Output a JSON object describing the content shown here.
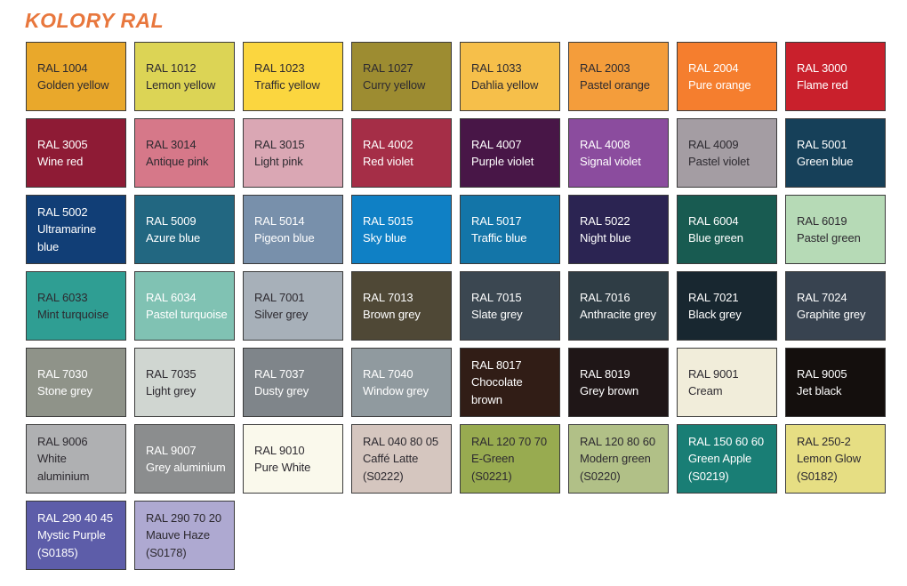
{
  "page": {
    "title": "KOLORY RAL",
    "title_color": "#E8773D",
    "background": "#FFFFFF"
  },
  "chart_data": {
    "type": "table",
    "title": "KOLORY RAL",
    "columns": [
      "code",
      "name",
      "suffix",
      "hex",
      "text_color"
    ],
    "layout": {
      "columns_per_row": 8,
      "swatch_border_color": "#3B3B3B"
    },
    "rows": [
      {
        "code": "RAL 1004",
        "name": "Golden yellow",
        "suffix": "",
        "hex": "#E9A82B",
        "text_color": "#2D2A30"
      },
      {
        "code": "RAL 1012",
        "name": "Lemon yellow",
        "suffix": "",
        "hex": "#DCD455",
        "text_color": "#2D2A30"
      },
      {
        "code": "RAL 1023",
        "name": "Traffic yellow",
        "suffix": "",
        "hex": "#FBD63F",
        "text_color": "#2D2A30"
      },
      {
        "code": "RAL 1027",
        "name": "Curry yellow",
        "suffix": "",
        "hex": "#9D8C31",
        "text_color": "#2D2A30"
      },
      {
        "code": "RAL 1033",
        "name": "Dahlia yellow",
        "suffix": "",
        "hex": "#F6BF4A",
        "text_color": "#2D2A30"
      },
      {
        "code": "RAL 2003",
        "name": "Pastel orange",
        "suffix": "",
        "hex": "#F49D3B",
        "text_color": "#2D2A30"
      },
      {
        "code": "RAL 2004",
        "name": "Pure orange",
        "suffix": "",
        "hex": "#F57E2E",
        "text_color": "#FFFFFF"
      },
      {
        "code": "RAL 3000",
        "name": "Flame red",
        "suffix": "",
        "hex": "#C9202C",
        "text_color": "#FFFFFF"
      },
      {
        "code": "RAL 3005",
        "name": "Wine red",
        "suffix": "",
        "hex": "#8E1B35",
        "text_color": "#FFFFFF"
      },
      {
        "code": "RAL 3014",
        "name": "Antique pink",
        "suffix": "",
        "hex": "#D67889",
        "text_color": "#2D2A30"
      },
      {
        "code": "RAL 3015",
        "name": "Light pink",
        "suffix": "",
        "hex": "#DAA7B4",
        "text_color": "#2D2A30"
      },
      {
        "code": "RAL 4002",
        "name": "Red violet",
        "suffix": "",
        "hex": "#A52E47",
        "text_color": "#FFFFFF"
      },
      {
        "code": "RAL 4007",
        "name": "Purple violet",
        "suffix": "",
        "hex": "#481647",
        "text_color": "#FFFFFF"
      },
      {
        "code": "RAL 4008",
        "name": "Signal violet",
        "suffix": "",
        "hex": "#8B4C9E",
        "text_color": "#FFFFFF"
      },
      {
        "code": "RAL 4009",
        "name": "Pastel violet",
        "suffix": "",
        "hex": "#A49DA3",
        "text_color": "#2D2A30"
      },
      {
        "code": "RAL 5001",
        "name": "Green blue",
        "suffix": "",
        "hex": "#164059",
        "text_color": "#FFFFFF"
      },
      {
        "code": "RAL 5002",
        "name": "Ultramarine\nblue",
        "suffix": "",
        "hex": "#113E76",
        "text_color": "#FFFFFF"
      },
      {
        "code": "RAL 5009",
        "name": "Azure blue",
        "suffix": "",
        "hex": "#226781",
        "text_color": "#FFFFFF"
      },
      {
        "code": "RAL 5014",
        "name": "Pigeon blue",
        "suffix": "",
        "hex": "#7890AB",
        "text_color": "#FFFFFF"
      },
      {
        "code": "RAL 5015",
        "name": "Sky blue",
        "suffix": "",
        "hex": "#0F80C5",
        "text_color": "#FFFFFF"
      },
      {
        "code": "RAL 5017",
        "name": "Traffic blue",
        "suffix": "",
        "hex": "#1375A8",
        "text_color": "#FFFFFF"
      },
      {
        "code": "RAL 5022",
        "name": "Night blue",
        "suffix": "",
        "hex": "#2B2452",
        "text_color": "#FFFFFF"
      },
      {
        "code": "RAL 6004",
        "name": "Blue green",
        "suffix": "",
        "hex": "#185B51",
        "text_color": "#FFFFFF"
      },
      {
        "code": "RAL 6019",
        "name": "Pastel green",
        "suffix": "",
        "hex": "#B6DAB6",
        "text_color": "#2D2A30"
      },
      {
        "code": "RAL 6033",
        "name": "Mint turquoise",
        "suffix": "",
        "hex": "#2F9E93",
        "text_color": "#2D2A30"
      },
      {
        "code": "RAL 6034",
        "name": "Pastel turquoise",
        "suffix": "",
        "hex": "#80C2B3",
        "text_color": "#FFFFFF"
      },
      {
        "code": "RAL 7001",
        "name": "Silver grey",
        "suffix": "",
        "hex": "#A7B0B9",
        "text_color": "#2D2A30"
      },
      {
        "code": "RAL 7013",
        "name": "Brown grey",
        "suffix": "",
        "hex": "#4F4836",
        "text_color": "#FFFFFF"
      },
      {
        "code": "RAL 7015",
        "name": "Slate grey",
        "suffix": "",
        "hex": "#3B4751",
        "text_color": "#FFFFFF"
      },
      {
        "code": "RAL 7016",
        "name": "Anthracite grey",
        "suffix": "",
        "hex": "#2F3D45",
        "text_color": "#FFFFFF"
      },
      {
        "code": "RAL 7021",
        "name": "Black grey",
        "suffix": "",
        "hex": "#182730",
        "text_color": "#FFFFFF"
      },
      {
        "code": "RAL 7024",
        "name": "Graphite grey",
        "suffix": "",
        "hex": "#384350",
        "text_color": "#FFFFFF"
      },
      {
        "code": "RAL 7030",
        "name": "Stone grey",
        "suffix": "",
        "hex": "#8F9389",
        "text_color": "#FFFFFF"
      },
      {
        "code": "RAL 7035",
        "name": "Light grey",
        "suffix": "",
        "hex": "#D0D6D1",
        "text_color": "#2D2A30"
      },
      {
        "code": "RAL 7037",
        "name": "Dusty grey",
        "suffix": "",
        "hex": "#7F858A",
        "text_color": "#FFFFFF"
      },
      {
        "code": "RAL 7040",
        "name": "Window grey",
        "suffix": "",
        "hex": "#909A9F",
        "text_color": "#FFFFFF"
      },
      {
        "code": "RAL 8017",
        "name": "Chocolate\nbrown",
        "suffix": "",
        "hex": "#311D16",
        "text_color": "#FFFFFF"
      },
      {
        "code": "RAL 8019",
        "name": "Grey brown",
        "suffix": "",
        "hex": "#1F1617",
        "text_color": "#FFFFFF"
      },
      {
        "code": "RAL 9001",
        "name": "Cream",
        "suffix": "",
        "hex": "#F1EDDA",
        "text_color": "#2D2A30"
      },
      {
        "code": "RAL 9005",
        "name": "Jet black",
        "suffix": "",
        "hex": "#140F0D",
        "text_color": "#FFFFFF"
      },
      {
        "code": "RAL 9006",
        "name": "White\naluminium",
        "suffix": "",
        "hex": "#AFB0B2",
        "text_color": "#2D2A30"
      },
      {
        "code": "RAL 9007",
        "name": "Grey aluminium",
        "suffix": "",
        "hex": "#8B8D8E",
        "text_color": "#FFFFFF"
      },
      {
        "code": "RAL 9010",
        "name": "Pure White",
        "suffix": "",
        "hex": "#FAF9EC",
        "text_color": "#2D2A30"
      },
      {
        "code": "RAL 040 80 05",
        "name": "Caffé Latte",
        "suffix": "(S0222)",
        "hex": "#D5C6BF",
        "text_color": "#2D2A30"
      },
      {
        "code": "RAL 120 70 70",
        "name": "E-Green",
        "suffix": "(S0221)",
        "hex": "#98AB50",
        "text_color": "#2D2A30"
      },
      {
        "code": "RAL 120 80 60",
        "name": "Modern green",
        "suffix": "(S0220)",
        "hex": "#B1C087",
        "text_color": "#2D2A30"
      },
      {
        "code": "RAL 150 60 60",
        "name": "Green Apple",
        "suffix": "(S0219)",
        "hex": "#197E75",
        "text_color": "#FFFFFF"
      },
      {
        "code": "RAL 250-2",
        "name": "Lemon Glow",
        "suffix": "(S0182)",
        "hex": "#E6DE83",
        "text_color": "#2D2A30"
      },
      {
        "code": "RAL 290 40 45",
        "name": "Mystic Purple",
        "suffix": "(S0185)",
        "hex": "#5D5DA9",
        "text_color": "#FFFFFF"
      },
      {
        "code": "RAL 290 70 20",
        "name": "Mauve Haze",
        "suffix": "(S0178)",
        "hex": "#AEA9D1",
        "text_color": "#2D2A30"
      }
    ]
  }
}
